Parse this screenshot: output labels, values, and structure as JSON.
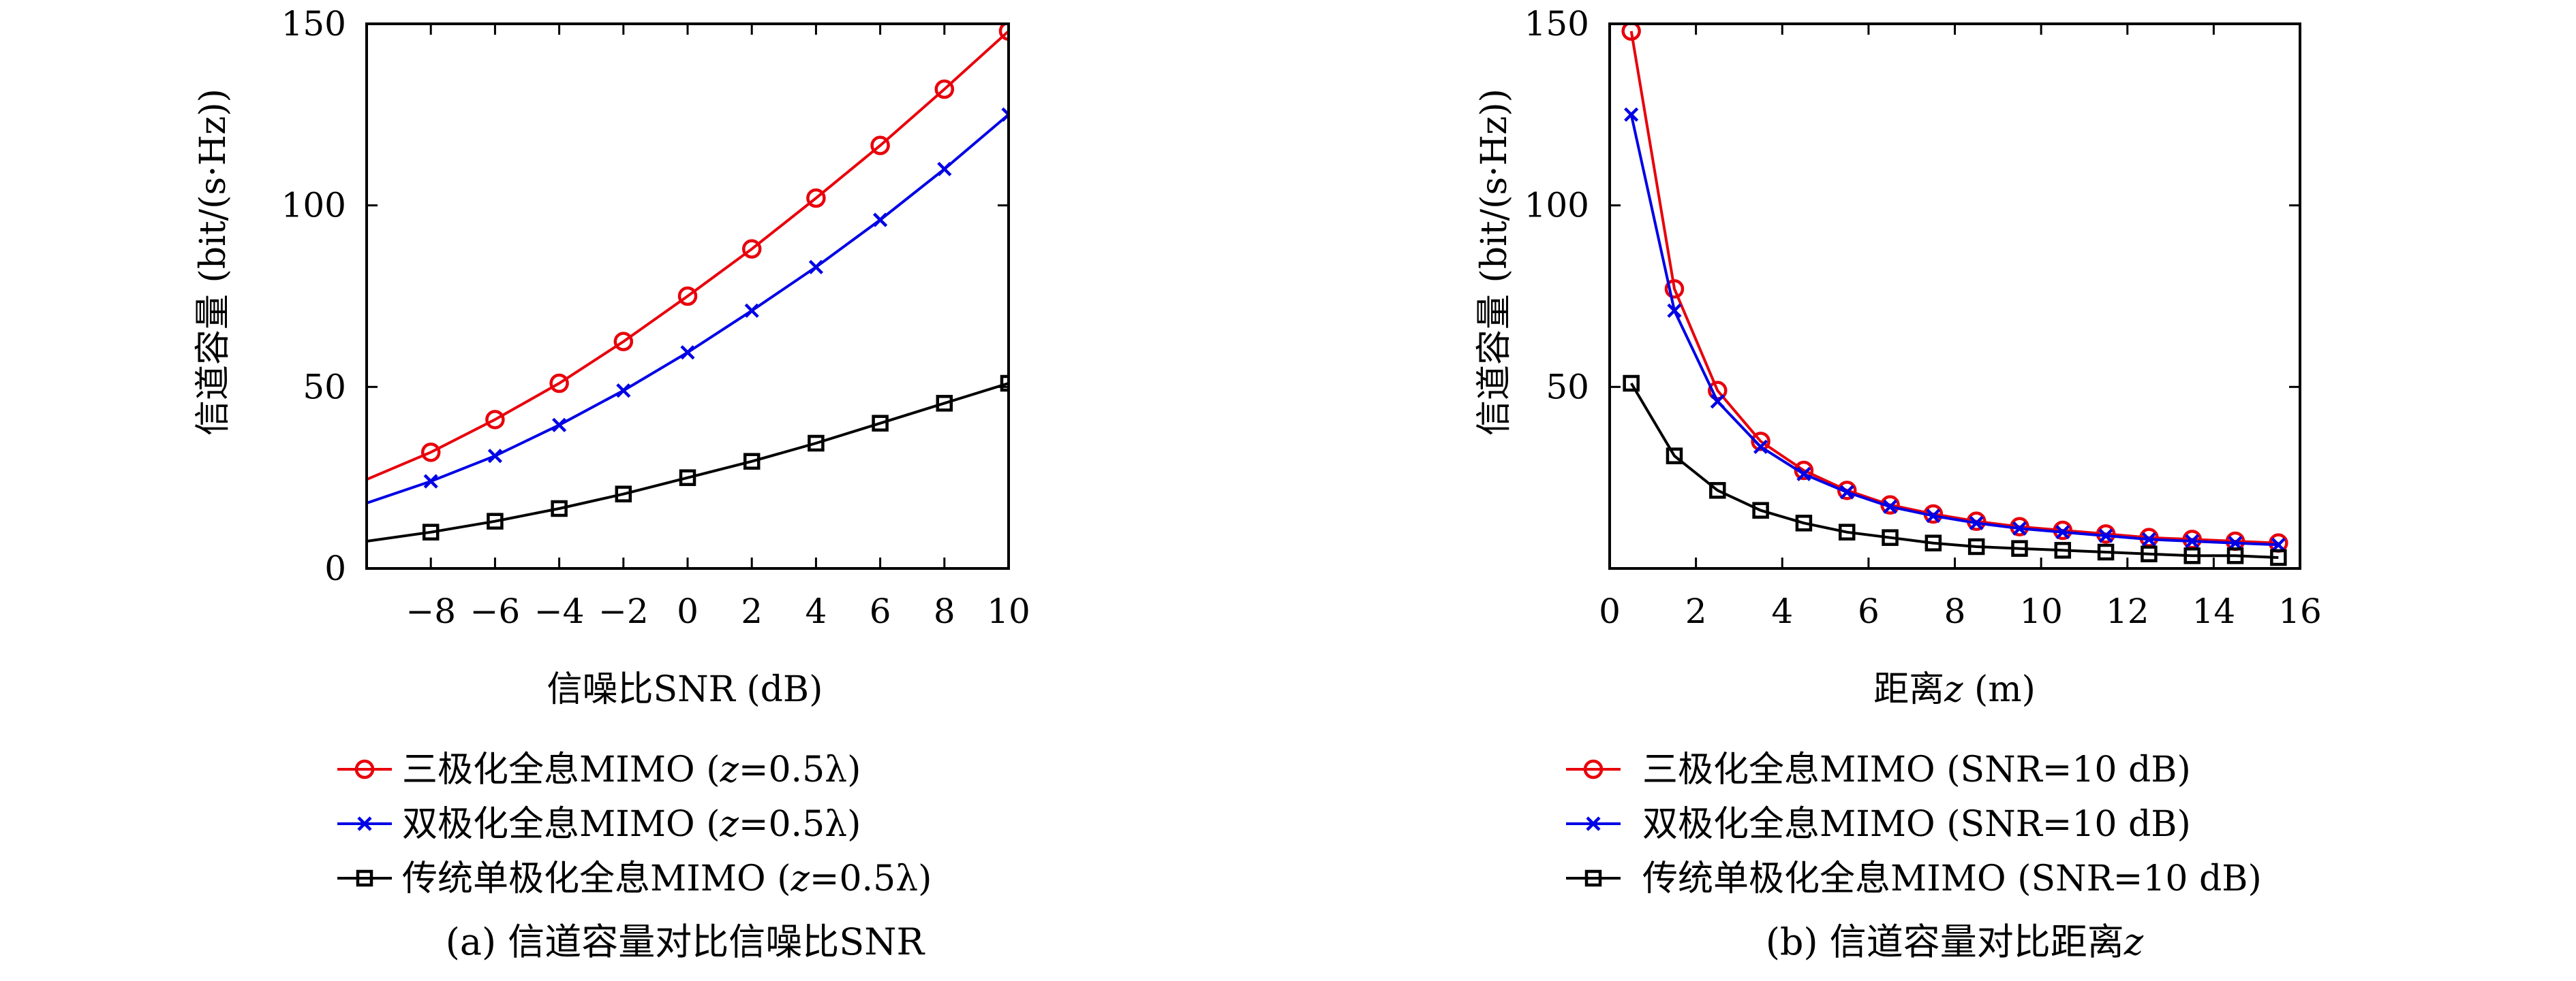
{
  "chart_data": [
    {
      "id": "a",
      "type": "line",
      "caption": "(a) 信道容量对比信噪比SNR",
      "xlabel": "信噪比SNR (dB)",
      "ylabel": "信道容量 (bit/(s·Hz))",
      "xlim": [
        -10,
        10
      ],
      "ylim": [
        0,
        150
      ],
      "xticks": [
        -8,
        -6,
        -4,
        -2,
        0,
        2,
        4,
        6,
        8,
        10
      ],
      "xtick_labels": [
        "−8",
        "−6",
        "−4",
        "−2",
        "0",
        "2",
        "4",
        "6",
        "8",
        "10"
      ],
      "yticks": [
        0,
        50,
        100,
        150
      ],
      "ytick_labels": [
        "0",
        "50",
        "100",
        "150"
      ],
      "legend_position": "below",
      "series": [
        {
          "name": "三极化全息MIMO (z=0.5λ)",
          "name_parts": [
            "三极化全息MIMO (",
            "z",
            "=0.5λ)"
          ],
          "color": "#e8000b",
          "marker": "circle",
          "x": [
            -10,
            -8,
            -6,
            -4,
            -2,
            0,
            2,
            4,
            6,
            8,
            10
          ],
          "y": [
            24.5,
            32,
            41,
            51,
            62.5,
            75,
            88,
            102,
            116.5,
            132,
            148
          ],
          "marker_x": [
            -8,
            -6,
            -4,
            -2,
            0,
            2,
            4,
            6,
            8,
            10
          ]
        },
        {
          "name": "双极化全息MIMO (z=0.5λ)",
          "name_parts": [
            "双极化全息MIMO (",
            "z",
            "=0.5λ)"
          ],
          "color": "#0000e6",
          "marker": "x",
          "x": [
            -10,
            -8,
            -6,
            -4,
            -2,
            0,
            2,
            4,
            6,
            8,
            10
          ],
          "y": [
            18,
            24,
            31,
            39.5,
            49,
            59.5,
            71,
            83,
            96,
            110,
            125
          ],
          "marker_x": [
            -8,
            -6,
            -4,
            -2,
            0,
            2,
            4,
            6,
            8,
            10
          ]
        },
        {
          "name": "传统单极化全息MIMO (z=0.5λ)",
          "name_parts": [
            "传统单极化全息MIMO (",
            "z",
            "=0.5λ)"
          ],
          "color": "#000000",
          "marker": "square",
          "x": [
            -10,
            -8,
            -6,
            -4,
            -2,
            0,
            2,
            4,
            6,
            8,
            10
          ],
          "y": [
            7.5,
            10,
            13,
            16.5,
            20.5,
            25,
            29.5,
            34.5,
            40,
            45.5,
            51
          ],
          "marker_x": [
            -8,
            -6,
            -4,
            -2,
            0,
            2,
            4,
            6,
            8,
            10
          ]
        }
      ]
    },
    {
      "id": "b",
      "type": "line",
      "caption": "(b) 信道容量对比距离z",
      "caption_parts": [
        "(b) 信道容量对比距离",
        "z"
      ],
      "xlabel": "距离z (m)",
      "xlabel_parts": [
        "距离",
        "z",
        " (m)"
      ],
      "ylabel": "信道容量 (bit/(s·Hz))",
      "xlim": [
        0,
        16
      ],
      "ylim": [
        0,
        150
      ],
      "xticks": [
        0,
        2,
        4,
        6,
        8,
        10,
        12,
        14,
        16
      ],
      "xtick_labels": [
        "0",
        "2",
        "4",
        "6",
        "8",
        "10",
        "12",
        "14",
        "16"
      ],
      "yticks": [
        50,
        100,
        150
      ],
      "ytick_labels": [
        "50",
        "100",
        "150"
      ],
      "legend_position": "below",
      "series": [
        {
          "name": "三极化全息MIMO (SNR=10 dB)",
          "color": "#e8000b",
          "marker": "circle",
          "x": [
            0.5,
            1.5,
            2.5,
            3.5,
            4.5,
            5.5,
            6.5,
            7.5,
            8.5,
            9.5,
            10.5,
            11.5,
            12.5,
            13.5,
            14.5,
            15.5
          ],
          "y": [
            148,
            77,
            49,
            35,
            27,
            21.5,
            17.5,
            15,
            13,
            11.5,
            10.5,
            9.5,
            8.5,
            8,
            7.5,
            7
          ],
          "marker_x": [
            0.5,
            1.5,
            2.5,
            3.5,
            4.5,
            5.5,
            6.5,
            7.5,
            8.5,
            9.5,
            10.5,
            11.5,
            12.5,
            13.5,
            14.5,
            15.5
          ]
        },
        {
          "name": "双极化全息MIMO (SNR=10 dB)",
          "color": "#0000e6",
          "marker": "x",
          "x": [
            0.5,
            1.5,
            2.5,
            3.5,
            4.5,
            5.5,
            6.5,
            7.5,
            8.5,
            9.5,
            10.5,
            11.5,
            12.5,
            13.5,
            14.5,
            15.5
          ],
          "y": [
            125,
            71,
            46,
            33.5,
            26,
            21,
            17,
            14.5,
            12.5,
            11,
            10,
            9,
            8,
            7.5,
            7,
            6.5
          ],
          "marker_x": [
            0.5,
            1.5,
            2.5,
            3.5,
            4.5,
            5.5,
            6.5,
            7.5,
            8.5,
            9.5,
            10.5,
            11.5,
            12.5,
            13.5,
            14.5,
            15.5
          ]
        },
        {
          "name": "传统单极化全息MIMO (SNR=10 dB)",
          "color": "#000000",
          "marker": "square",
          "x": [
            0.5,
            1.5,
            2.5,
            3.5,
            4.5,
            5.5,
            6.5,
            7.5,
            8.5,
            9.5,
            10.5,
            11.5,
            12.5,
            13.5,
            14.5,
            15.5
          ],
          "y": [
            51,
            31,
            21.5,
            16,
            12.5,
            10,
            8.5,
            7,
            6,
            5.5,
            5,
            4.5,
            4,
            3.5,
            3.5,
            3
          ],
          "marker_x": [
            0.5,
            1.5,
            2.5,
            3.5,
            4.5,
            5.5,
            6.5,
            7.5,
            8.5,
            9.5,
            10.5,
            11.5,
            12.5,
            13.5,
            14.5,
            15.5
          ]
        }
      ]
    }
  ]
}
